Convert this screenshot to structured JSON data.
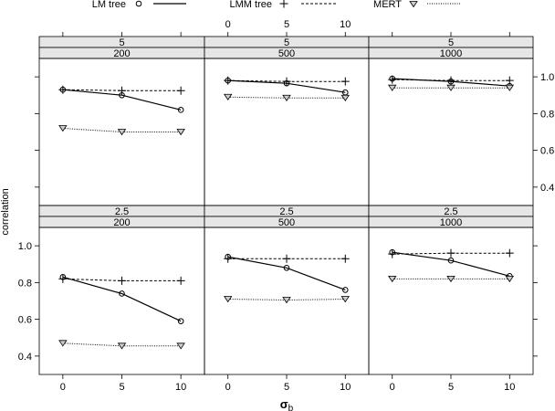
{
  "chart_data": {
    "type": "line",
    "title": "",
    "xlabel_main": "σ",
    "xlabel_sub": "b",
    "ylabel": "correlation",
    "x": [
      0,
      5,
      10
    ],
    "xlim": [
      -2,
      12
    ],
    "ylim": [
      0.3,
      1.1
    ],
    "x_ticks": [
      "0",
      "5",
      "10"
    ],
    "y_ticks": [
      "0.4",
      "0.6",
      "0.8",
      "1.0"
    ],
    "legend": [
      {
        "name": "LM tree",
        "marker": "circle",
        "line": "solid"
      },
      {
        "name": "LMM tree",
        "marker": "plus",
        "line": "dashed"
      },
      {
        "name": "MERT",
        "marker": "triangle",
        "line": "dotted"
      }
    ],
    "panels": [
      {
        "strip_top": "5",
        "strip_bottom": "200",
        "series": [
          {
            "name": "LM tree",
            "values": [
              0.93,
              0.9,
              0.82
            ]
          },
          {
            "name": "LMM tree",
            "values": [
              0.93,
              0.925,
              0.925
            ]
          },
          {
            "name": "MERT",
            "values": [
              0.72,
              0.7,
              0.7
            ]
          }
        ]
      },
      {
        "strip_top": "5",
        "strip_bottom": "500",
        "series": [
          {
            "name": "LM tree",
            "values": [
              0.98,
              0.965,
              0.915
            ]
          },
          {
            "name": "LMM tree",
            "values": [
              0.98,
              0.975,
              0.975
            ]
          },
          {
            "name": "MERT",
            "values": [
              0.89,
              0.885,
              0.885
            ]
          }
        ]
      },
      {
        "strip_top": "5",
        "strip_bottom": "1000",
        "series": [
          {
            "name": "LM tree",
            "values": [
              0.99,
              0.975,
              0.95
            ]
          },
          {
            "name": "LMM tree",
            "values": [
              0.985,
              0.98,
              0.98
            ]
          },
          {
            "name": "MERT",
            "values": [
              0.94,
              0.94,
              0.94
            ]
          }
        ]
      },
      {
        "strip_top": "2.5",
        "strip_bottom": "200",
        "series": [
          {
            "name": "LM tree",
            "values": [
              0.83,
              0.74,
              0.59
            ]
          },
          {
            "name": "LMM tree",
            "values": [
              0.82,
              0.81,
              0.81
            ]
          },
          {
            "name": "MERT",
            "values": [
              0.47,
              0.455,
              0.455
            ]
          }
        ]
      },
      {
        "strip_top": "2.5",
        "strip_bottom": "500",
        "series": [
          {
            "name": "LM tree",
            "values": [
              0.94,
              0.88,
              0.76
            ]
          },
          {
            "name": "LMM tree",
            "values": [
              0.93,
              0.93,
              0.93
            ]
          },
          {
            "name": "MERT",
            "values": [
              0.71,
              0.705,
              0.71
            ]
          }
        ]
      },
      {
        "strip_top": "2.5",
        "strip_bottom": "1000",
        "series": [
          {
            "name": "LM tree",
            "values": [
              0.965,
              0.92,
              0.835
            ]
          },
          {
            "name": "LMM tree",
            "values": [
              0.955,
              0.96,
              0.96
            ]
          },
          {
            "name": "MERT",
            "values": [
              0.82,
              0.82,
              0.82
            ]
          }
        ]
      }
    ]
  }
}
